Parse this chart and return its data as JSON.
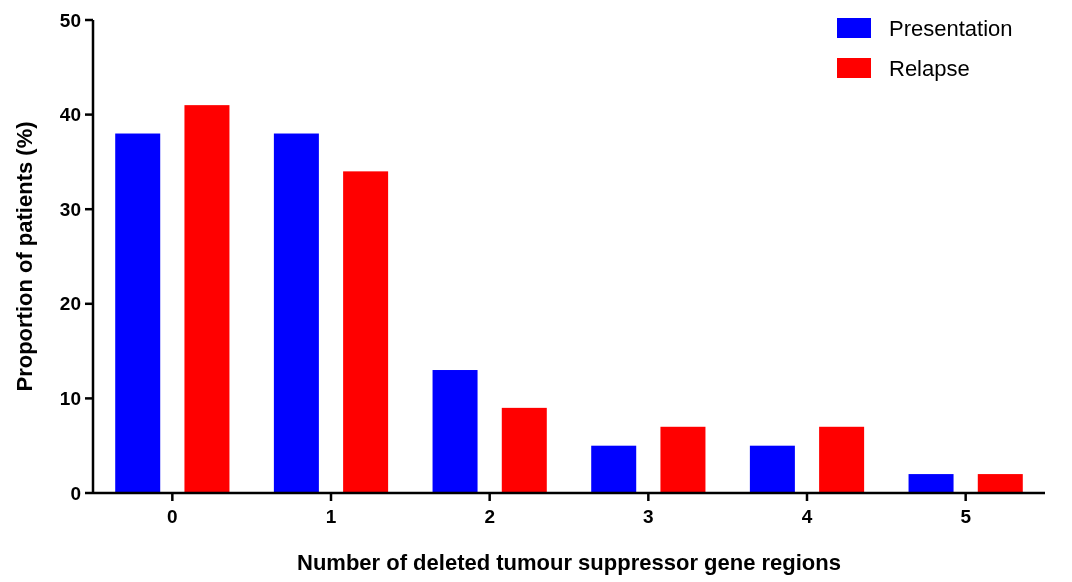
{
  "chart_data": {
    "type": "bar",
    "xlabel": "Number of deleted tumour suppressor gene regions",
    "ylabel": "Proportion of patients (%)",
    "categories": [
      "0",
      "1",
      "2",
      "3",
      "4",
      "5"
    ],
    "series": [
      {
        "name": "Presentation",
        "color": "#0000ff",
        "values": [
          38,
          38,
          13,
          5,
          5,
          2
        ]
      },
      {
        "name": "Relapse",
        "color": "#ff0000",
        "values": [
          41,
          34,
          9,
          7,
          7,
          2
        ]
      }
    ],
    "ylim": [
      0,
      50
    ],
    "yticks": [
      0,
      10,
      20,
      30,
      40,
      50
    ],
    "grid": false,
    "legend": "top right"
  }
}
